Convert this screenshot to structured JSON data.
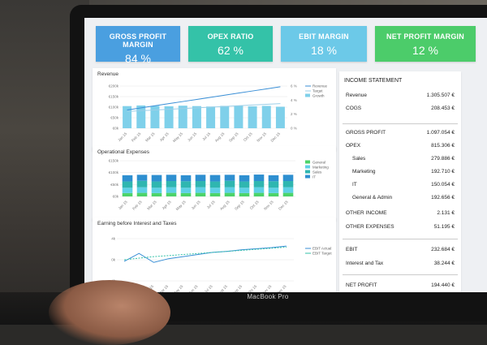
{
  "device": {
    "brand_label": "MacBook Pro"
  },
  "kpis": [
    {
      "label": "GROSS PROFIT MARGIN",
      "value": "84 %",
      "color": "#4a9fe0"
    },
    {
      "label": "OPEX RATIO",
      "value": "62 %",
      "color": "#34c2a8"
    },
    {
      "label": "EBIT MARGIN",
      "value": "18 %",
      "color": "#6cc9e8"
    },
    {
      "label": "NET PROFIT MARGIN",
      "value": "12 %",
      "color": "#4ccc6a"
    }
  ],
  "income_statement": {
    "title": "INCOME STATEMENT",
    "rows": [
      {
        "label": "Revenue",
        "value": "1.305.507 €",
        "indent": false
      },
      {
        "label": "COGS",
        "value": "208.453 €",
        "indent": false
      },
      {
        "label": "GROSS PROFIT",
        "value": "1.097.054 €",
        "indent": false
      },
      {
        "label": "OPEX",
        "value": "815.306 €",
        "indent": false
      },
      {
        "label": "Sales",
        "value": "279.886 €",
        "indent": true
      },
      {
        "label": "Marketing",
        "value": "192.710 €",
        "indent": true
      },
      {
        "label": "IT",
        "value": "150.054 €",
        "indent": true
      },
      {
        "label": "General & Admin",
        "value": "192.656 €",
        "indent": true
      },
      {
        "label": "OTHER INCOME",
        "value": "2.131 €",
        "indent": false
      },
      {
        "label": "OTHER EXPENSES",
        "value": "51.195 €",
        "indent": false
      },
      {
        "label": "EBIT",
        "value": "232.684 €",
        "indent": false
      },
      {
        "label": "Interest and Tax",
        "value": "38.244 €",
        "indent": false
      },
      {
        "label": "NET PROFIT",
        "value": "194.440 €",
        "indent": false
      }
    ]
  },
  "chart_data": [
    {
      "type": "bar",
      "title": "Revenue",
      "categories": [
        "Jan 15",
        "Feb 15",
        "Mar 15",
        "Apr 15",
        "May 15",
        "Jun 15",
        "Jul 15",
        "Aug 15",
        "Sep 15",
        "Oct 15",
        "Nov 15",
        "Dec 15"
      ],
      "yticks": [
        "€200k",
        "€150k",
        "€100k",
        "€50k",
        "€0k"
      ],
      "y2ticks": [
        "6 %",
        "4 %",
        "2 %",
        "0 %"
      ],
      "ylim": [
        0,
        200
      ],
      "y2lim": [
        0,
        6
      ],
      "series": [
        {
          "name": "Revenue",
          "kind": "line",
          "axis": "y2",
          "color": "#3a8fd6",
          "values": [
            2.6,
            2.9,
            3.2,
            3.5,
            3.8,
            4.1,
            4.4,
            4.7,
            5.0,
            5.3,
            5.6,
            5.9
          ]
        },
        {
          "name": "Target",
          "kind": "line",
          "axis": "y2",
          "color": "#9ccfe8",
          "values": [
            2.4,
            2.5,
            2.6,
            2.7,
            2.8,
            2.9,
            3.0,
            3.1,
            3.2,
            3.3,
            3.4,
            3.5
          ]
        },
        {
          "name": "Growth",
          "kind": "bar",
          "axis": "y",
          "color": "#7fd0ea",
          "values": [
            105,
            108,
            106,
            104,
            107,
            105,
            103,
            106,
            108,
            104,
            106,
            102
          ]
        }
      ],
      "legend": "right"
    },
    {
      "type": "bar",
      "stacked": true,
      "title": "Operational Expenses",
      "categories": [
        "Jan 15",
        "Feb 15",
        "Mar 15",
        "Apr 15",
        "May 15",
        "Jun 15",
        "Jul 15",
        "Aug 15",
        "Sep 15",
        "Oct 15",
        "Nov 15",
        "Dec 15"
      ],
      "yticks": [
        "€150k",
        "€100k",
        "€50k",
        "€0k"
      ],
      "ylim": [
        0,
        160
      ],
      "series": [
        {
          "name": "General",
          "color": "#4cd36a",
          "values": [
            15,
            16,
            15,
            16,
            15,
            16,
            15,
            16,
            15,
            16,
            15,
            16
          ]
        },
        {
          "name": "Marketing",
          "color": "#5ed0e6",
          "values": [
            24,
            25,
            24,
            25,
            24,
            25,
            24,
            25,
            24,
            25,
            24,
            25
          ]
        },
        {
          "name": "Sales",
          "color": "#2fb6b0",
          "values": [
            28,
            29,
            28,
            28,
            29,
            28,
            28,
            29,
            28,
            28,
            29,
            28
          ]
        },
        {
          "name": "IT",
          "color": "#2e8fd0",
          "values": [
            28,
            27,
            29,
            28,
            27,
            28,
            29,
            27,
            28,
            29,
            27,
            28
          ]
        }
      ],
      "legend": "right"
    },
    {
      "type": "line",
      "title": "Earning before Interest and Taxes",
      "categories": [
        "Jan 15",
        "Feb 15",
        "Mar 15",
        "Apr 15",
        "May 15",
        "Jun 15",
        "Jul 15",
        "Aug 15",
        "Sep 15",
        "Oct 15",
        "Nov 15",
        "Dec 15"
      ],
      "yticks": [
        "4k",
        "0k",
        "-4k"
      ],
      "ylim": [
        -4,
        4
      ],
      "series": [
        {
          "name": "EBIT Actual",
          "color": "#3a8fd6",
          "values": [
            -0.3,
            1.2,
            -0.5,
            0.2,
            0.6,
            1.0,
            1.4,
            1.6,
            1.9,
            2.1,
            2.3,
            2.6
          ]
        },
        {
          "name": "EBIT Target",
          "color": "#34c2a8",
          "dashed": true,
          "values": [
            0.0,
            0.3,
            0.6,
            0.8,
            1.0,
            1.2,
            1.4,
            1.6,
            1.8,
            2.0,
            2.2,
            2.4
          ]
        }
      ],
      "legend": "right"
    }
  ]
}
